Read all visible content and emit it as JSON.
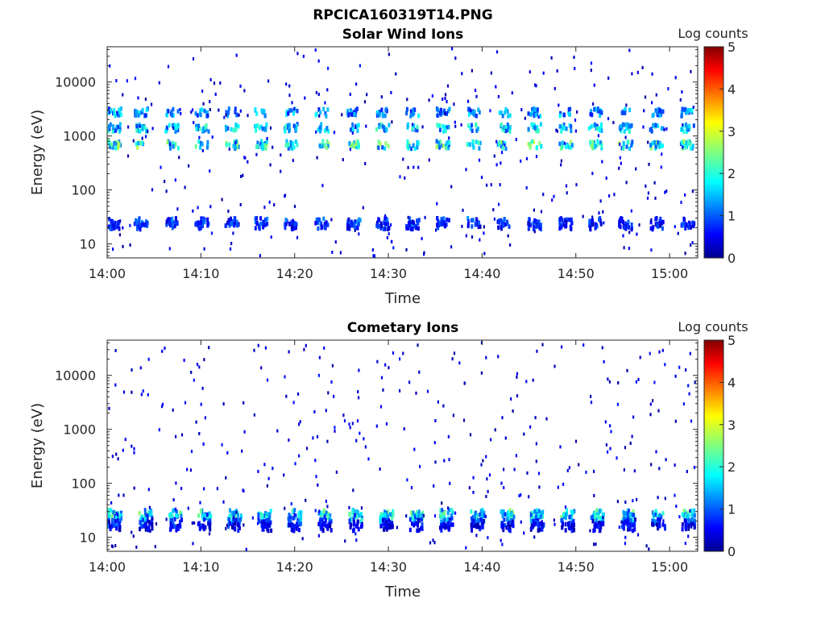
{
  "figure_title": "RPCICA160319T14.PNG",
  "chart_data": [
    {
      "type": "heatmap",
      "title": "Solar Wind Ions",
      "xlabel": "Time",
      "ylabel": "Energy (eV)",
      "x_tick_labels": [
        "14:00",
        "14:10",
        "14:20",
        "14:30",
        "14:40",
        "14:50",
        "15:00"
      ],
      "x_ticks_min": [
        0,
        10,
        20,
        30,
        40,
        50,
        60
      ],
      "xlim_min": [
        0,
        63
      ],
      "y_scale": "log",
      "y_tick_labels": [
        "10",
        "100",
        "1000",
        "10000"
      ],
      "y_ticks": [
        10,
        100,
        1000,
        10000
      ],
      "ylim": [
        5.5,
        45000
      ],
      "colorbar": {
        "label": "Log counts",
        "range": [
          0,
          5
        ],
        "tick_labels": [
          "0",
          "1",
          "2",
          "3",
          "4",
          "5"
        ],
        "colormap": "jet"
      },
      "bands": [
        {
          "energy": 28,
          "level": 0.9,
          "spread": 0.5
        },
        {
          "energy": 24,
          "level": 0.7,
          "spread": 0.4
        },
        {
          "energy": 750,
          "level": 1.9,
          "spread": 0.9
        },
        {
          "energy": 1550,
          "level": 1.6,
          "spread": 0.7
        },
        {
          "energy": 3000,
          "level": 1.3,
          "spread": 0.6
        }
      ],
      "scans": [
        0.7,
        3.5,
        6.8,
        10,
        13.2,
        16.3,
        19.5,
        22.8,
        26.2,
        29.3,
        32.5,
        35.7,
        39,
        42.2,
        45.5,
        48.8,
        52,
        55.2,
        58.5,
        61.8
      ]
    },
    {
      "type": "heatmap",
      "title": "Cometary Ions",
      "xlabel": "Time",
      "ylabel": "Energy (eV)",
      "x_tick_labels": [
        "14:00",
        "14:10",
        "14:20",
        "14:30",
        "14:40",
        "14:50",
        "15:00"
      ],
      "x_ticks_min": [
        0,
        10,
        20,
        30,
        40,
        50,
        60
      ],
      "xlim_min": [
        0,
        63
      ],
      "y_scale": "log",
      "y_tick_labels": [
        "10",
        "100",
        "1000",
        "10000"
      ],
      "y_ticks": [
        10,
        100,
        1000,
        10000
      ],
      "ylim": [
        5.5,
        45000
      ],
      "colorbar": {
        "label": "Log counts",
        "range": [
          0,
          5
        ],
        "tick_labels": [
          "0",
          "1",
          "2",
          "3",
          "4",
          "5"
        ],
        "colormap": "jet"
      },
      "bands": [
        {
          "energy": 30,
          "level": 1.8,
          "spread": 0.8
        },
        {
          "energy": 25,
          "level": 1.5,
          "spread": 0.8
        },
        {
          "energy": 20,
          "level": 0.8,
          "spread": 0.5
        },
        {
          "energy": 17,
          "level": 0.5,
          "spread": 0.3
        }
      ],
      "scans": [
        0.7,
        4,
        7.2,
        10.3,
        13.5,
        16.7,
        19.9,
        23.1,
        26.4,
        29.7,
        32.9,
        36.1,
        39.4,
        42.6,
        45.8,
        49,
        52.2,
        55.5,
        58.7,
        61.9
      ]
    }
  ]
}
